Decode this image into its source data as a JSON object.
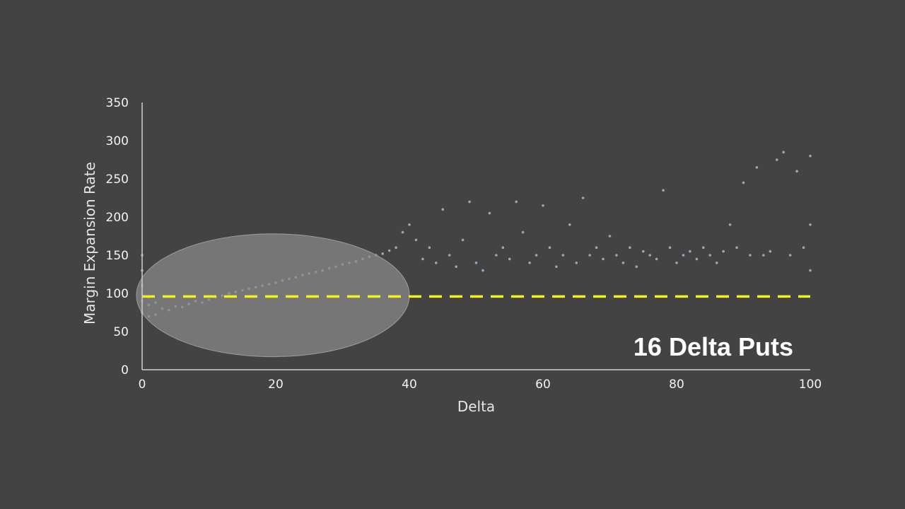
{
  "chart_data": {
    "type": "scatter",
    "title": "",
    "xlabel": "Delta",
    "ylabel": "Margin Expansion Rate",
    "xlim": [
      0,
      100
    ],
    "ylim": [
      0,
      350
    ],
    "x_ticks": [
      "0",
      "20",
      "40",
      "60",
      "80",
      "100"
    ],
    "y_ticks": [
      "0",
      "50",
      "100",
      "150",
      "200",
      "250",
      "300",
      "350"
    ],
    "grid": false,
    "legend": "none",
    "reference_line": {
      "y": 96,
      "style": "dashed",
      "color": "#f2f21a"
    },
    "highlight_region": {
      "x_range": [
        0,
        40
      ],
      "y_range": [
        17,
        178
      ],
      "shape": "ellipse",
      "color": "#8a8a8a"
    },
    "annotation": "16 Delta Puts",
    "point_color": "#a9c3dd",
    "series": [
      {
        "trend": "dense band rising from about 75 at delta 0 to about 140 at delta 35, then a wide spread centered near 140 up to delta 100",
        "points": [
          [
            0,
            75
          ],
          [
            0,
            90
          ],
          [
            0,
            110
          ],
          [
            0,
            130
          ],
          [
            0,
            150
          ],
          [
            1,
            70
          ],
          [
            1,
            85
          ],
          [
            1,
            95
          ],
          [
            2,
            72
          ],
          [
            2,
            88
          ],
          [
            3,
            80
          ],
          [
            4,
            78
          ],
          [
            5,
            83
          ],
          [
            6,
            82
          ],
          [
            7,
            86
          ],
          [
            8,
            90
          ],
          [
            9,
            88
          ],
          [
            10,
            92
          ],
          [
            11,
            95
          ],
          [
            12,
            97
          ],
          [
            13,
            100
          ],
          [
            14,
            102
          ],
          [
            15,
            104
          ],
          [
            16,
            106
          ],
          [
            17,
            108
          ],
          [
            18,
            110
          ],
          [
            19,
            112
          ],
          [
            20,
            114
          ],
          [
            21,
            117
          ],
          [
            22,
            119
          ],
          [
            23,
            121
          ],
          [
            24,
            124
          ],
          [
            25,
            126
          ],
          [
            26,
            128
          ],
          [
            27,
            130
          ],
          [
            28,
            133
          ],
          [
            29,
            135
          ],
          [
            30,
            138
          ],
          [
            31,
            140
          ],
          [
            32,
            142
          ],
          [
            33,
            145
          ],
          [
            34,
            148
          ],
          [
            35,
            150
          ],
          [
            36,
            152
          ],
          [
            37,
            156
          ],
          [
            38,
            160
          ],
          [
            39,
            180
          ],
          [
            40,
            190
          ],
          [
            41,
            170
          ],
          [
            42,
            145
          ],
          [
            43,
            160
          ],
          [
            44,
            140
          ],
          [
            45,
            210
          ],
          [
            46,
            150
          ],
          [
            47,
            135
          ],
          [
            48,
            170
          ],
          [
            49,
            220
          ],
          [
            50,
            140
          ],
          [
            51,
            130
          ],
          [
            52,
            205
          ],
          [
            53,
            150
          ],
          [
            54,
            160
          ],
          [
            55,
            145
          ],
          [
            56,
            220
          ],
          [
            57,
            180
          ],
          [
            58,
            140
          ],
          [
            59,
            150
          ],
          [
            60,
            215
          ],
          [
            61,
            160
          ],
          [
            62,
            135
          ],
          [
            63,
            150
          ],
          [
            64,
            190
          ],
          [
            65,
            140
          ],
          [
            66,
            225
          ],
          [
            67,
            150
          ],
          [
            68,
            160
          ],
          [
            69,
            145
          ],
          [
            70,
            175
          ],
          [
            71,
            150
          ],
          [
            72,
            140
          ],
          [
            73,
            160
          ],
          [
            74,
            135
          ],
          [
            75,
            155
          ],
          [
            76,
            150
          ],
          [
            77,
            145
          ],
          [
            78,
            235
          ],
          [
            79,
            160
          ],
          [
            80,
            140
          ],
          [
            81,
            150
          ],
          [
            82,
            155
          ],
          [
            83,
            145
          ],
          [
            84,
            160
          ],
          [
            85,
            150
          ],
          [
            86,
            140
          ],
          [
            87,
            155
          ],
          [
            88,
            190
          ],
          [
            89,
            160
          ],
          [
            90,
            245
          ],
          [
            91,
            150
          ],
          [
            92,
            265
          ],
          [
            93,
            150
          ],
          [
            94,
            155
          ],
          [
            95,
            275
          ],
          [
            96,
            285
          ],
          [
            97,
            150
          ],
          [
            98,
            260
          ],
          [
            99,
            160
          ],
          [
            100,
            280
          ],
          [
            100,
            130
          ],
          [
            100,
            190
          ]
        ]
      }
    ]
  }
}
